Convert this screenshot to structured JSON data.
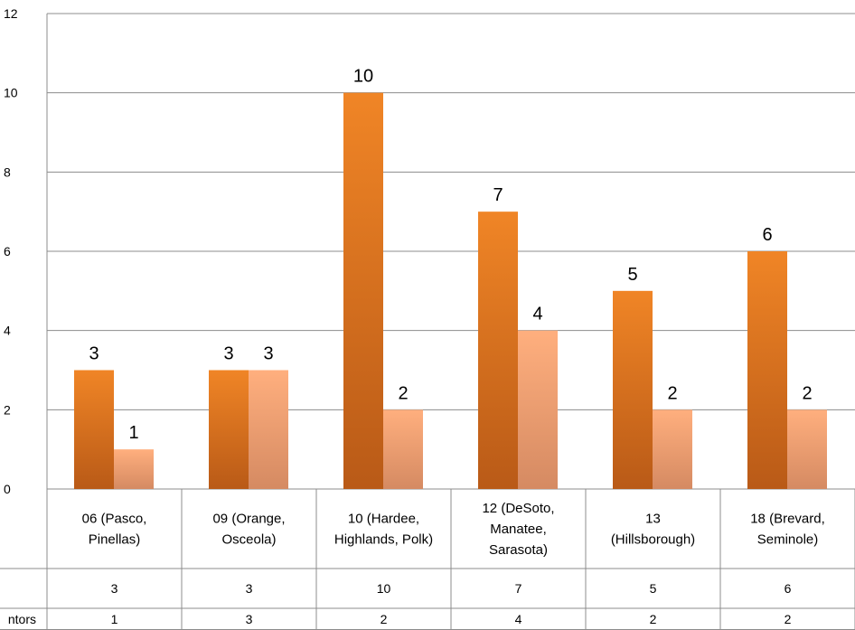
{
  "chart_data": {
    "type": "bar",
    "categories": [
      [
        "06  (Pasco,",
        "Pinellas)"
      ],
      [
        "09  (Orange,",
        "Osceola)"
      ],
      [
        "10  (Hardee,",
        "Highlands, Polk)"
      ],
      [
        "12  (DeSoto,",
        "Manatee,",
        "Sarasota)"
      ],
      [
        "13",
        "(Hillsborough)"
      ],
      [
        "18  (Brevard,",
        "Seminole)"
      ]
    ],
    "series": [
      {
        "name": "",
        "values": [
          3,
          3,
          10,
          7,
          5,
          6
        ],
        "color": "#E87722"
      },
      {
        "name": "ntors",
        "values": [
          1,
          3,
          2,
          4,
          2,
          2
        ],
        "color": "#F9A97A"
      }
    ],
    "ylim": [
      0,
      12
    ],
    "yticks": [
      0,
      2,
      4,
      6,
      8,
      10,
      12
    ],
    "grid": true,
    "data_table": true,
    "title": "",
    "xlabel": "",
    "ylabel": ""
  }
}
